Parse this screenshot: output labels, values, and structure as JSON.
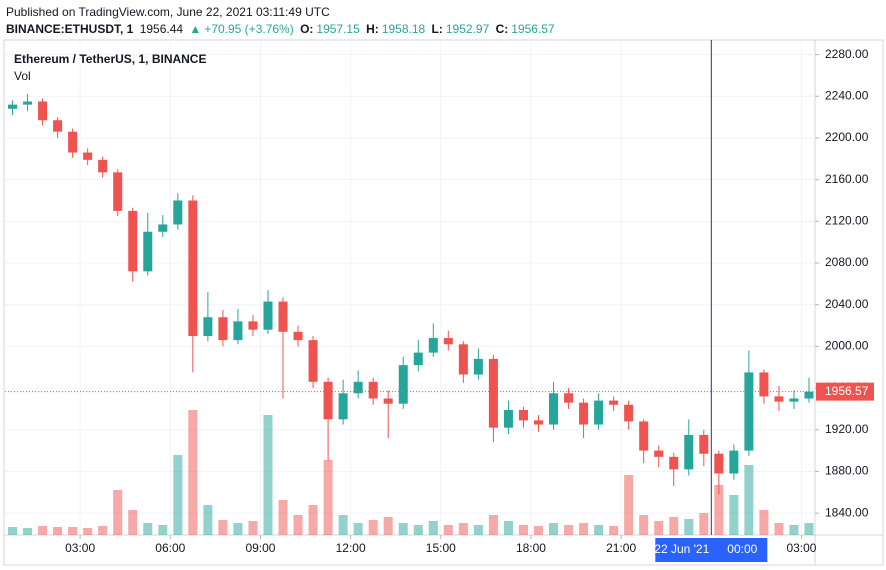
{
  "header": {
    "published": "Published on TradingView.com, June 22, 2021 03:11:49 UTC",
    "symbol": "BINANCE:ETHUSDT, 1",
    "price": "1956.44",
    "change": "+70.95 (+3.76%)",
    "o_label": "O:",
    "o": "1957.15",
    "h_label": "H:",
    "h": "1958.18",
    "l_label": "L:",
    "l": "1952.97",
    "c_label": "C:",
    "c": "1956.57"
  },
  "chart_data": {
    "type": "candlestick",
    "title": "Ethereum / TetherUS, 1, BINANCE",
    "volume_label": "Vol",
    "up_color": "#26a69a",
    "down_color": "#ef5350",
    "grid": true,
    "x": [
      0.75,
      1.25,
      1.75,
      2.25,
      2.75,
      3.25,
      3.75,
      4.25,
      4.75,
      5.25,
      5.75,
      6.25,
      6.75,
      7.25,
      7.75,
      8.25,
      8.75,
      9.25,
      9.75,
      10.25,
      10.75,
      11.25,
      11.75,
      12.25,
      12.75,
      13.25,
      13.75,
      14.25,
      14.75,
      15.25,
      15.75,
      16.25,
      16.75,
      17.25,
      17.75,
      18.25,
      18.75,
      19.25,
      19.75,
      20.25,
      20.75,
      21.25,
      21.75,
      22.25,
      22.75,
      23.25,
      23.75,
      24.25,
      24.75,
      25.25,
      25.75,
      26.25,
      26.75,
      27.25
    ],
    "open": [
      2228,
      2232,
      2235,
      2217,
      2206,
      2186,
      2179,
      2167,
      2130,
      2072,
      2110,
      2117,
      2140,
      2010,
      2028,
      2006,
      2024,
      2016,
      2043,
      2014,
      2006,
      1966,
      1930,
      1955,
      1966,
      1950,
      1945,
      1982,
      1994,
      2008,
      2002,
      1973,
      1988,
      1922,
      1939,
      1929,
      1925,
      1955,
      1946,
      1925,
      1948,
      1944,
      1928,
      1900,
      1894,
      1882,
      1915,
      1897,
      1878,
      1900,
      1975,
      1952,
      1947,
      1950
    ],
    "high": [
      2236,
      2242,
      2238,
      2220,
      2209,
      2190,
      2182,
      2170,
      2133,
      2128,
      2126,
      2147,
      2145,
      2052,
      2035,
      2036,
      2030,
      2054,
      2047,
      2020,
      2010,
      1970,
      1968,
      1977,
      1970,
      1958,
      1990,
      2006,
      2022,
      2015,
      2005,
      1998,
      1992,
      1948,
      1942,
      1934,
      1966,
      1960,
      1950,
      1955,
      1952,
      1948,
      1930,
      1905,
      1898,
      1930,
      1920,
      1900,
      1906,
      1996,
      1978,
      1962,
      1958,
      1970
    ],
    "low": [
      2222,
      2226,
      2212,
      2200,
      2181,
      2174,
      2162,
      2125,
      2062,
      2068,
      2105,
      2112,
      1975,
      2005,
      2000,
      2002,
      2010,
      2012,
      1950,
      2000,
      1960,
      1890,
      1925,
      1950,
      1944,
      1912,
      1940,
      1976,
      1990,
      1996,
      1965,
      1968,
      1908,
      1916,
      1922,
      1918,
      1920,
      1940,
      1912,
      1920,
      1938,
      1920,
      1888,
      1884,
      1866,
      1876,
      1885,
      1858,
      1872,
      1895,
      1945,
      1938,
      1940,
      1946
    ],
    "close": [
      2232,
      2235,
      2217,
      2206,
      2186,
      2179,
      2167,
      2130,
      2072,
      2110,
      2117,
      2140,
      2010,
      2028,
      2006,
      2024,
      2016,
      2043,
      2014,
      2006,
      1966,
      1930,
      1955,
      1966,
      1950,
      1945,
      1982,
      1994,
      2008,
      2002,
      1973,
      1988,
      1922,
      1939,
      1929,
      1925,
      1955,
      1946,
      1925,
      1948,
      1944,
      1928,
      1900,
      1894,
      1882,
      1915,
      1897,
      1878,
      1900,
      1975,
      1952,
      1947,
      1950,
      1956.57
    ],
    "volume": [
      8,
      7,
      9,
      8,
      8,
      7,
      9,
      45,
      25,
      12,
      10,
      80,
      125,
      30,
      15,
      12,
      14,
      120,
      35,
      20,
      30,
      75,
      20,
      12,
      15,
      18,
      12,
      10,
      14,
      10,
      12,
      10,
      20,
      14,
      10,
      9,
      12,
      10,
      12,
      10,
      9,
      60,
      20,
      14,
      18,
      16,
      22,
      50,
      40,
      70,
      25,
      12,
      10,
      12
    ],
    "xlim": [
      0.5,
      27.45
    ],
    "ylim": [
      1819,
      2294
    ],
    "yticks": [
      {
        "value": 1840,
        "label": "1840.00"
      },
      {
        "value": 1880,
        "label": "1880.00"
      },
      {
        "value": 1920,
        "label": "1920.00"
      },
      {
        "value": 1960,
        "label": "1960.00"
      },
      {
        "value": 2000,
        "label": "2000.00"
      },
      {
        "value": 2040,
        "label": "2040.00"
      },
      {
        "value": 2080,
        "label": "2080.00"
      },
      {
        "value": 2120,
        "label": "2120.00"
      },
      {
        "value": 2160,
        "label": "2160.00"
      },
      {
        "value": 2200,
        "label": "2200.00"
      },
      {
        "value": 2240,
        "label": "2240.00"
      },
      {
        "value": 2280,
        "label": "2280.00"
      }
    ],
    "xticks": [
      {
        "value": 3,
        "label": "03:00"
      },
      {
        "value": 6,
        "label": "06:00"
      },
      {
        "value": 9,
        "label": "09:00"
      },
      {
        "value": 12,
        "label": "12:00"
      },
      {
        "value": 15,
        "label": "15:00"
      },
      {
        "value": 18,
        "label": "18:00"
      },
      {
        "value": 21,
        "label": "21:00"
      },
      {
        "value": 27,
        "label": "03:00"
      }
    ],
    "last_price": {
      "value": 1956.57,
      "label": "1956.57"
    },
    "crosshair": {
      "x": 24,
      "date_label": "22 Jun '21",
      "time_label": "00:00"
    }
  }
}
